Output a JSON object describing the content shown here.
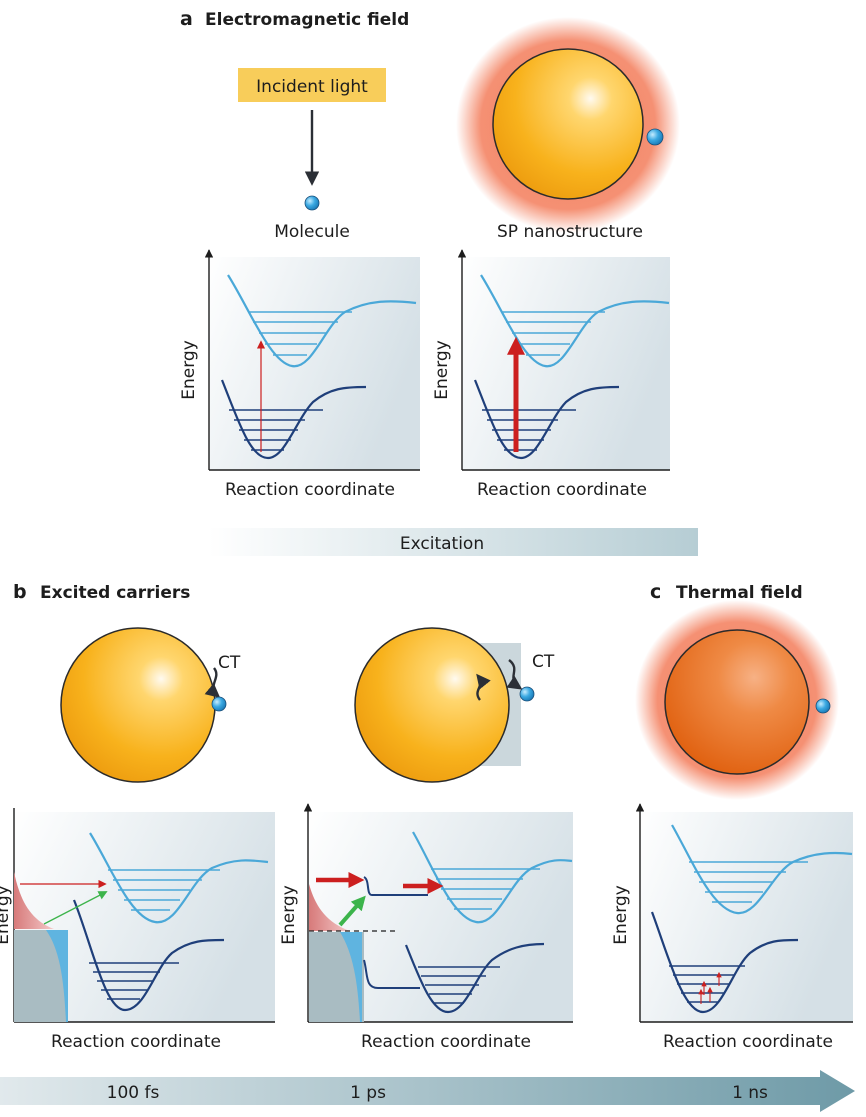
{
  "panel_a": {
    "letter": "a",
    "title": "Electromagnetic field",
    "incident_light": "Incident light",
    "molecule": "Molecule",
    "sp_nanostructure": "SP nanostructure",
    "y_label": "Energy",
    "x_label": "Reaction coordinate",
    "excitation": "Excitation"
  },
  "panel_b": {
    "letter": "b",
    "title": "Excited carriers",
    "ct_label": "CT",
    "y_label": "Energy",
    "x_label": "Reaction coordinate"
  },
  "panel_c": {
    "letter": "c",
    "title": "Thermal field",
    "y_label": "Energy",
    "x_label": "Reaction coordinate"
  },
  "timeline": {
    "labels": [
      "100 fs",
      "1 ps",
      "1 ns"
    ]
  },
  "colors": {
    "excited_curve": "#4aa8d8",
    "ground_curve": "#1f3f7a",
    "red_arrow": "#cc1f1f",
    "green_arrow": "#3cb44b",
    "gold": "#f7b21a",
    "thermal": "#e8731e",
    "label_box": "#f8cd5a",
    "molecule": "#37a6de"
  }
}
